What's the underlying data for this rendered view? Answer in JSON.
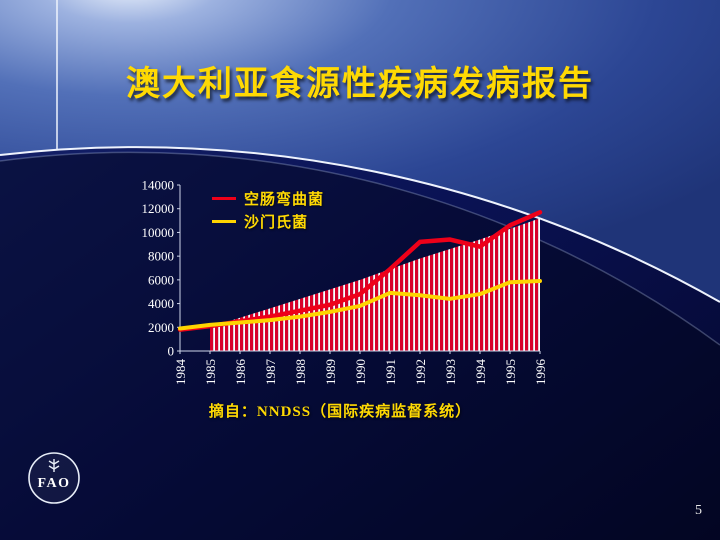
{
  "slide": {
    "title": "澳大利亚食源性疾病发病报告",
    "caption": "摘自：NNDSS（国际疾病监督系统）",
    "page_number": "5",
    "logo_text": "FAO"
  },
  "colors": {
    "title": "#ffd903",
    "caption": "#ffd903",
    "legend_text": "#ffd903",
    "area_stripe": "#d8002a",
    "axis_text": "#ffffff",
    "main_arc": "#eef3fd"
  },
  "chart_data": {
    "type": "line",
    "title": "",
    "categories": [
      "1984",
      "1985",
      "1986",
      "1987",
      "1988",
      "1989",
      "1990",
      "1991",
      "1992",
      "1993",
      "1994",
      "1995",
      "1996"
    ],
    "series": [
      {
        "name": "空肠弯曲菌",
        "color": "#ee0019",
        "values": [
          1800,
          2100,
          2500,
          2900,
          3400,
          3900,
          4800,
          6900,
          9200,
          9400,
          8800,
          10600,
          11700
        ]
      },
      {
        "name": "沙门氏菌",
        "color": "#ffd400",
        "values": [
          1900,
          2200,
          2400,
          2600,
          2900,
          3300,
          3800,
          4900,
          4700,
          4400,
          4800,
          5800,
          5900
        ]
      }
    ],
    "area_series": {
      "start_index": 1,
      "values": [
        2000,
        2800,
        3600,
        4400,
        5200,
        6000,
        6900,
        7800,
        8600,
        9400,
        10300,
        11200
      ]
    },
    "ylim": [
      0,
      14000
    ],
    "ytick_step": 2000,
    "xlabel": "",
    "ylabel": "",
    "legend_position": "top-left",
    "grid": false
  }
}
